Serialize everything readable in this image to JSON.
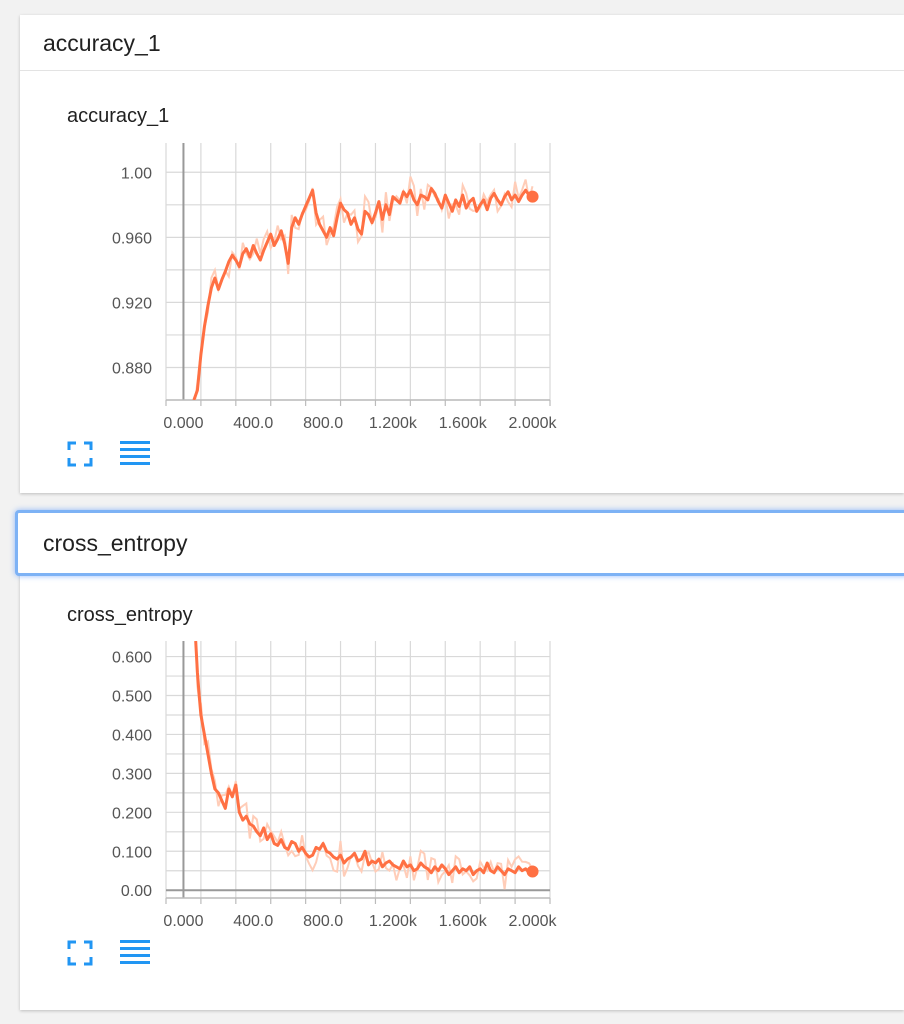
{
  "colors": {
    "accent": "#ff7043",
    "accent_light": "#ffcdb8",
    "icon": "#2196f3",
    "focus": "#7db2f5"
  },
  "sections": [
    {
      "header": "accuracy_1",
      "chart_title": "accuracy_1",
      "buttons": {
        "expand_icon": "fullscreen-icon",
        "data_icon": "list-icon"
      }
    },
    {
      "header": "cross_entropy",
      "chart_title": "cross_entropy",
      "buttons": {
        "expand_icon": "fullscreen-icon",
        "data_icon": "list-icon"
      }
    }
  ],
  "chart_data": [
    {
      "type": "line",
      "title": "accuracy_1",
      "xlabel": "",
      "ylabel": "",
      "xlim": [
        -100,
        2100
      ],
      "ylim": [
        0.86,
        1.018
      ],
      "x_ticks": [
        "0.000",
        "400.0",
        "800.0",
        "1.200k",
        "1.600k",
        "2.000k"
      ],
      "y_ticks": [
        "0.880",
        "0.920",
        "0.960",
        "1.00"
      ],
      "grid": true,
      "series": [
        {
          "smoothed": true,
          "x": [
            60,
            80,
            100,
            120,
            140,
            160,
            180,
            200,
            220,
            240,
            260,
            280,
            300,
            320,
            340,
            360,
            380,
            400,
            420,
            440,
            460,
            480,
            500,
            520,
            540,
            560,
            580,
            600,
            620,
            640,
            660,
            680,
            700,
            720,
            740,
            760,
            780,
            800,
            820,
            840,
            860,
            880,
            900,
            920,
            940,
            960,
            980,
            1000,
            1020,
            1040,
            1060,
            1080,
            1100,
            1120,
            1140,
            1160,
            1180,
            1200,
            1220,
            1240,
            1260,
            1280,
            1300,
            1320,
            1340,
            1360,
            1380,
            1400,
            1420,
            1440,
            1460,
            1480,
            1500,
            1520,
            1540,
            1560,
            1580,
            1600,
            1620,
            1640,
            1660,
            1680,
            1700,
            1720,
            1740,
            1760,
            1780,
            1800,
            1820,
            1840,
            1860,
            1880,
            1900,
            1920,
            1940,
            1960,
            1980,
            2000
          ],
          "y": [
            0.86,
            0.866,
            0.888,
            0.905,
            0.918,
            0.929,
            0.935,
            0.928,
            0.934,
            0.939,
            0.945,
            0.949,
            0.946,
            0.942,
            0.95,
            0.953,
            0.948,
            0.955,
            0.95,
            0.946,
            0.952,
            0.957,
            0.962,
            0.955,
            0.959,
            0.964,
            0.956,
            0.944,
            0.966,
            0.972,
            0.968,
            0.974,
            0.979,
            0.984,
            0.989,
            0.975,
            0.968,
            0.964,
            0.96,
            0.966,
            0.961,
            0.972,
            0.981,
            0.977,
            0.975,
            0.968,
            0.972,
            0.965,
            0.962,
            0.976,
            0.974,
            0.969,
            0.975,
            0.982,
            0.971,
            0.98,
            0.974,
            0.985,
            0.983,
            0.981,
            0.988,
            0.985,
            0.989,
            0.983,
            0.98,
            0.986,
            0.985,
            0.983,
            0.99,
            0.987,
            0.982,
            0.978,
            0.986,
            0.981,
            0.976,
            0.983,
            0.979,
            0.986,
            0.978,
            0.982,
            0.984,
            0.976,
            0.98,
            0.983,
            0.977,
            0.984,
            0.987,
            0.983,
            0.98,
            0.985,
            0.988,
            0.983,
            0.986,
            0.982,
            0.986,
            0.989,
            0.986,
            0.985
          ]
        }
      ]
    },
    {
      "type": "line",
      "title": "cross_entropy",
      "xlabel": "",
      "ylabel": "",
      "xlim": [
        -100,
        2100
      ],
      "ylim": [
        -0.02,
        0.64
      ],
      "x_ticks": [
        "0.000",
        "400.0",
        "800.0",
        "1.200k",
        "1.600k",
        "2.000k"
      ],
      "y_ticks": [
        "0.00",
        "0.100",
        "0.200",
        "0.300",
        "0.400",
        "0.500",
        "0.600"
      ],
      "grid": true,
      "series": [
        {
          "smoothed": true,
          "x": [
            70,
            80,
            90,
            100,
            120,
            140,
            160,
            180,
            200,
            220,
            240,
            260,
            280,
            300,
            320,
            340,
            360,
            380,
            400,
            420,
            440,
            460,
            480,
            500,
            520,
            540,
            560,
            580,
            600,
            620,
            640,
            660,
            680,
            700,
            720,
            740,
            760,
            780,
            800,
            820,
            840,
            860,
            880,
            900,
            920,
            940,
            960,
            980,
            1000,
            1020,
            1040,
            1060,
            1080,
            1100,
            1120,
            1140,
            1160,
            1180,
            1200,
            1220,
            1240,
            1260,
            1280,
            1300,
            1320,
            1340,
            1360,
            1380,
            1400,
            1420,
            1440,
            1460,
            1480,
            1500,
            1520,
            1540,
            1560,
            1580,
            1600,
            1620,
            1640,
            1660,
            1680,
            1700,
            1720,
            1740,
            1760,
            1780,
            1800,
            1820,
            1840,
            1860,
            1880,
            1900,
            1920,
            1940,
            1960,
            1980,
            2000
          ],
          "y": [
            0.64,
            0.56,
            0.5,
            0.45,
            0.4,
            0.35,
            0.3,
            0.26,
            0.25,
            0.23,
            0.21,
            0.26,
            0.24,
            0.27,
            0.2,
            0.18,
            0.19,
            0.17,
            0.165,
            0.15,
            0.14,
            0.16,
            0.13,
            0.145,
            0.12,
            0.115,
            0.13,
            0.11,
            0.105,
            0.125,
            0.12,
            0.1,
            0.11,
            0.095,
            0.085,
            0.09,
            0.11,
            0.105,
            0.12,
            0.1,
            0.095,
            0.085,
            0.08,
            0.09,
            0.07,
            0.08,
            0.085,
            0.095,
            0.075,
            0.08,
            0.1,
            0.065,
            0.075,
            0.07,
            0.08,
            0.06,
            0.07,
            0.075,
            0.065,
            0.06,
            0.055,
            0.075,
            0.06,
            0.065,
            0.05,
            0.055,
            0.07,
            0.06,
            0.055,
            0.045,
            0.06,
            0.05,
            0.065,
            0.055,
            0.04,
            0.05,
            0.06,
            0.045,
            0.055,
            0.05,
            0.06,
            0.04,
            0.05,
            0.055,
            0.045,
            0.07,
            0.05,
            0.045,
            0.06,
            0.05,
            0.04,
            0.055,
            0.05,
            0.045,
            0.06,
            0.05,
            0.055,
            0.045,
            0.048
          ]
        }
      ]
    }
  ]
}
